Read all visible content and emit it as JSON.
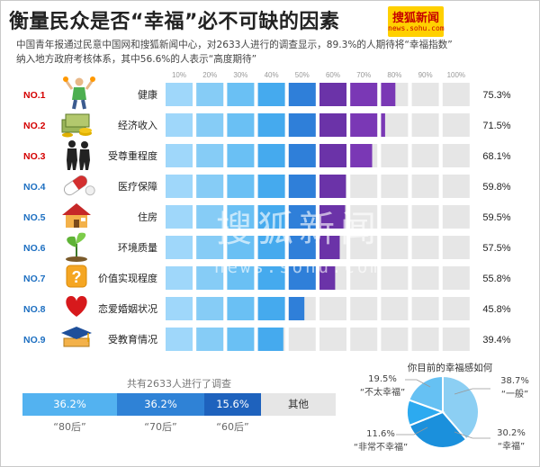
{
  "title": "衡量民众是否“幸福”必不可缺的因素",
  "logo": {
    "name": "搜狐新闻",
    "url": "news.sohu.com"
  },
  "subtitle": [
    "中国青年报通过民意中国网和搜狐新闻中心，对2633人进行的调查显示，89.3%的人期待将“幸福指数”",
    "纳入地方政府考核体系，其中56.6%的人表示“高度期待”"
  ],
  "watermark": {
    "cn": "搜狐新闻",
    "en": "news.sohu.com"
  },
  "colors": {
    "title": "#222222",
    "rank_top": "#d40000",
    "rank_other": "#1d6fc1",
    "empty_cell": "#e6e6e6",
    "purple": "#6b33a8"
  },
  "icons": [
    "health-figure-icon",
    "money-icon",
    "people-silhouette-icon",
    "pill-icon",
    "house-icon",
    "plant-icon",
    "question-icon",
    "heart-icon",
    "graduation-cap-icon"
  ],
  "chart_data": [
    {
      "type": "bar",
      "xticks": [
        "10%",
        "20%",
        "30%",
        "40%",
        "50%",
        "60%",
        "70%",
        "80%",
        "90%",
        "100%"
      ],
      "xlim": [
        0,
        100
      ],
      "ranks": [
        "NO.1",
        "NO.2",
        "NO.3",
        "NO.4",
        "NO.5",
        "NO.6",
        "NO.7",
        "NO.8",
        "NO.9"
      ],
      "categories": [
        "健康",
        "经济收入",
        "受尊重程度",
        "医疗保障",
        "住房",
        "环境质量",
        "价值实现程度",
        "恋爱婚姻状况",
        "受教育情况"
      ],
      "values": [
        75.3,
        71.5,
        68.1,
        59.8,
        59.5,
        57.5,
        55.8,
        45.8,
        39.4
      ],
      "value_labels": [
        "75.3%",
        "71.5%",
        "68.1%",
        "59.8%",
        "59.5%",
        "57.5%",
        "55.8%",
        "45.8%",
        "39.4%"
      ],
      "segment_colors": [
        "#9fd7fa",
        "#86ccf6",
        "#6ac0f4",
        "#45aaee",
        "#2f7fd9",
        "#6b33a8",
        "#7a38b5",
        "#7a38b5",
        "#7a38b5",
        "#7a38b5"
      ]
    },
    {
      "type": "bar",
      "title": "共有2633人进行了调查",
      "categories": [
        "“80后”",
        "“70后”",
        "“60后”",
        "其他"
      ],
      "values": [
        36.2,
        36.2,
        15.6,
        null
      ],
      "value_labels": [
        "36.2%",
        "36.2%",
        "15.6%",
        "其他"
      ],
      "colors": [
        "#53b2f0",
        "#2f82d6",
        "#1e62bd",
        "#e6e6e6"
      ]
    },
    {
      "type": "pie",
      "title": "你目前的幸福感如何",
      "categories": [
        "“一般”",
        "“幸福”",
        "“非常不幸福”",
        "“不太幸福”"
      ],
      "values": [
        38.7,
        30.2,
        11.6,
        19.5
      ],
      "value_labels": [
        "38.7%",
        "30.2%",
        "11.6%",
        "19.5%"
      ],
      "colors": [
        "#8ccff3",
        "#1b90dc",
        "#2caaf0",
        "#66c1f3"
      ]
    }
  ]
}
